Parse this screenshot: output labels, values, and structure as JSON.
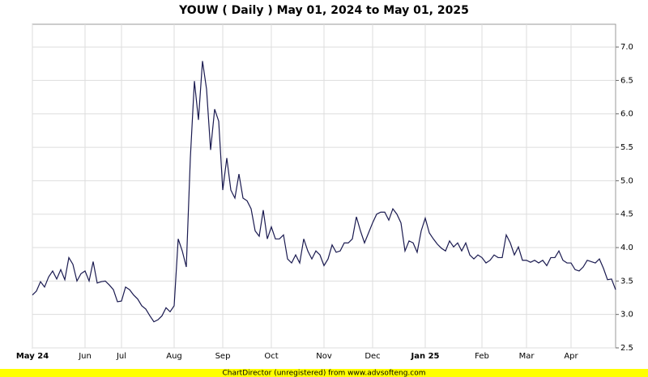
{
  "chart_data": {
    "type": "line",
    "title": "YOUW ( Daily ) May 01, 2024 to May 01, 2025",
    "footer": "ChartDirector (unregistered) from www.advsofteng.com",
    "series": [
      {
        "name": "YOUW",
        "color": "#1a1a50",
        "values": [
          3.29,
          3.35,
          3.49,
          3.41,
          3.56,
          3.65,
          3.53,
          3.67,
          3.52,
          3.85,
          3.75,
          3.5,
          3.61,
          3.65,
          3.5,
          3.79,
          3.47,
          3.49,
          3.5,
          3.44,
          3.37,
          3.19,
          3.2,
          3.41,
          3.37,
          3.29,
          3.23,
          3.13,
          3.08,
          2.98,
          2.89,
          2.92,
          2.98,
          3.1,
          3.04,
          3.13,
          4.13,
          3.95,
          3.71,
          5.34,
          6.49,
          5.91,
          6.79,
          6.37,
          5.46,
          6.07,
          5.89,
          4.86,
          5.34,
          4.86,
          4.74,
          5.1,
          4.74,
          4.7,
          4.58,
          4.25,
          4.17,
          4.56,
          4.13,
          4.31,
          4.13,
          4.13,
          4.19,
          3.83,
          3.77,
          3.89,
          3.77,
          4.13,
          3.95,
          3.83,
          3.95,
          3.89,
          3.73,
          3.83,
          4.04,
          3.93,
          3.95,
          4.07,
          4.07,
          4.13,
          4.46,
          4.25,
          4.07,
          4.22,
          4.37,
          4.5,
          4.53,
          4.53,
          4.41,
          4.58,
          4.5,
          4.37,
          3.95,
          4.1,
          4.07,
          3.93,
          4.25,
          4.44,
          4.22,
          4.13,
          4.05,
          3.99,
          3.95,
          4.1,
          4.01,
          4.07,
          3.95,
          4.07,
          3.89,
          3.83,
          3.89,
          3.85,
          3.77,
          3.81,
          3.89,
          3.85,
          3.85,
          4.19,
          4.07,
          3.89,
          4.01,
          3.81,
          3.81,
          3.78,
          3.81,
          3.77,
          3.81,
          3.73,
          3.85,
          3.85,
          3.95,
          3.81,
          3.77,
          3.77,
          3.67,
          3.65,
          3.71,
          3.81,
          3.79,
          3.77,
          3.83,
          3.69,
          3.52,
          3.53,
          3.37
        ]
      }
    ],
    "xlim": [
      0,
      144
    ],
    "xticks": [
      {
        "value": 0,
        "label": "May 24"
      },
      {
        "value": 13,
        "label": "Jun"
      },
      {
        "value": 22,
        "label": "Jul"
      },
      {
        "value": 35,
        "label": "Aug"
      },
      {
        "value": 47,
        "label": "Sep"
      },
      {
        "value": 59,
        "label": "Oct"
      },
      {
        "value": 72,
        "label": "Nov"
      },
      {
        "value": 84,
        "label": "Dec"
      },
      {
        "value": 97,
        "label": "Jan 25"
      },
      {
        "value": 111,
        "label": "Feb"
      },
      {
        "value": 122,
        "label": "Mar"
      },
      {
        "value": 133,
        "label": "Apr"
      }
    ],
    "ylim": [
      2.5,
      7.34
    ],
    "yticks": [
      {
        "value": 2.5,
        "label": "2.5"
      },
      {
        "value": 3,
        "label": "3.0"
      },
      {
        "value": 3.5,
        "label": "3.5"
      },
      {
        "value": 4,
        "label": "4.0"
      },
      {
        "value": 4.5,
        "label": "4.5"
      },
      {
        "value": 5,
        "label": "5.0"
      },
      {
        "value": 5.5,
        "label": "5.5"
      },
      {
        "value": 6,
        "label": "6.0"
      },
      {
        "value": 6.5,
        "label": "6.5"
      },
      {
        "value": 7,
        "label": "7.0"
      }
    ],
    "grid": true
  }
}
